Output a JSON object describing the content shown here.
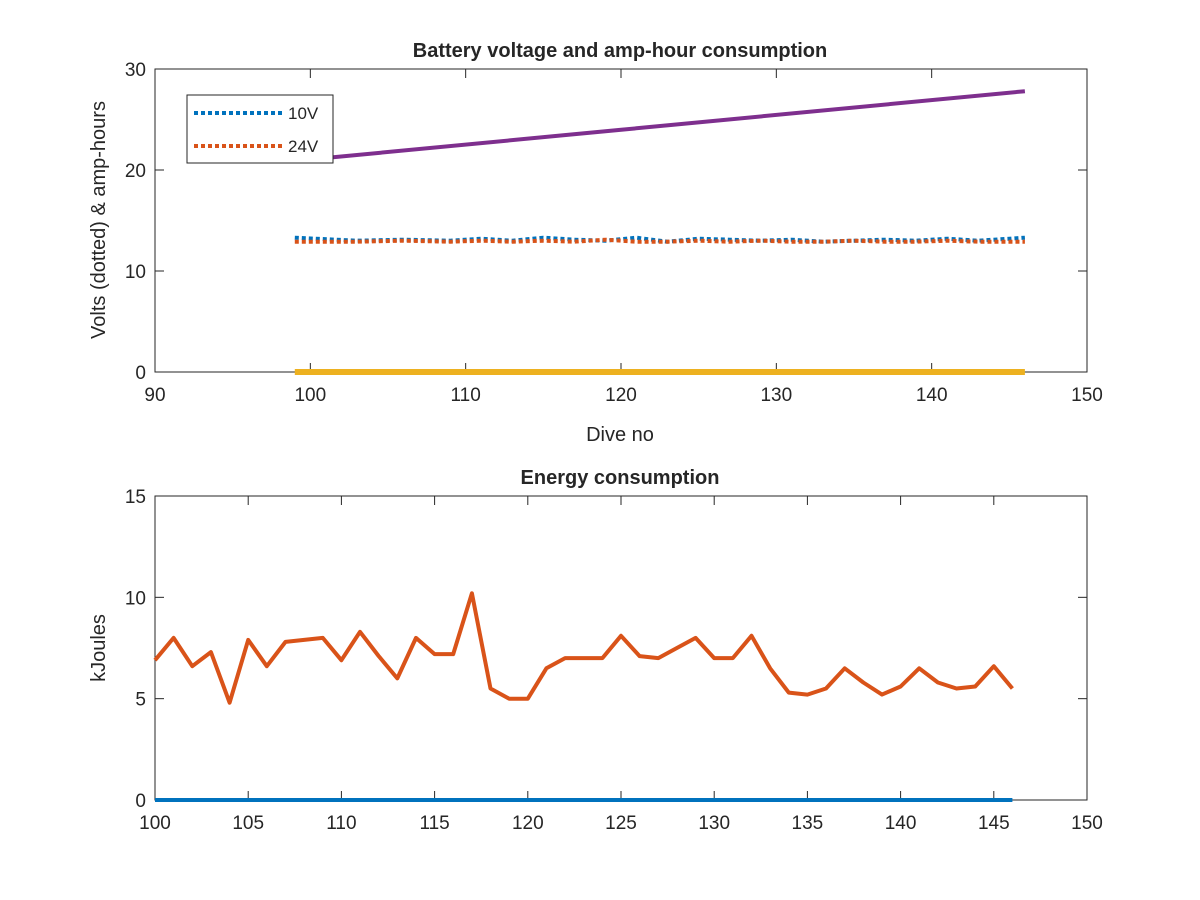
{
  "chart_data": [
    {
      "type": "line",
      "title": "Battery voltage and amp-hour consumption",
      "xlabel": "Dive no",
      "ylabel": "Volts (dotted) & amp-hours",
      "xlim": [
        90,
        150
      ],
      "ylim": [
        0,
        30
      ],
      "xticks": [
        90,
        100,
        110,
        120,
        130,
        140,
        150
      ],
      "yticks": [
        0,
        10,
        20,
        30
      ],
      "grid": false,
      "legend_location": "top-left",
      "series": [
        {
          "name": "10V",
          "style": "dotted",
          "color": "#0072BD",
          "x": [
            99,
            103,
            106,
            109,
            111,
            113,
            115,
            117,
            119,
            121,
            123,
            125,
            127,
            129,
            131,
            133,
            135,
            137,
            139,
            141,
            143,
            146
          ],
          "y": [
            13.3,
            13.0,
            13.1,
            13.0,
            13.2,
            13.0,
            13.3,
            13.1,
            13.0,
            13.3,
            12.9,
            13.2,
            13.1,
            13.0,
            13.1,
            12.9,
            13.0,
            13.1,
            13.0,
            13.2,
            13.0,
            13.3
          ]
        },
        {
          "name": "24V",
          "style": "dotted",
          "color": "#D95319",
          "x": [
            99,
            103,
            106,
            109,
            111,
            113,
            115,
            117,
            119,
            121,
            123,
            125,
            127,
            129,
            131,
            133,
            135,
            137,
            139,
            141,
            143,
            146
          ],
          "y": [
            12.9,
            12.9,
            13.0,
            12.9,
            13.0,
            12.9,
            13.0,
            12.9,
            13.1,
            12.9,
            12.9,
            13.0,
            12.9,
            13.0,
            12.9,
            12.9,
            13.0,
            12.9,
            12.9,
            13.0,
            12.9,
            12.9
          ]
        },
        {
          "style": "solid",
          "color": "#7E2F8E",
          "x": [
            99,
            146
          ],
          "y": [
            20.9,
            27.8
          ]
        },
        {
          "style": "solid",
          "color": "#EDB120",
          "x": [
            99,
            146
          ],
          "y": [
            0,
            0
          ]
        }
      ]
    },
    {
      "type": "line",
      "title": "Energy consumption",
      "xlabel": "",
      "ylabel": "kJoules",
      "xlim": [
        100,
        150
      ],
      "ylim": [
        0,
        15
      ],
      "xticks": [
        100,
        105,
        110,
        115,
        120,
        125,
        130,
        135,
        140,
        145,
        150
      ],
      "yticks": [
        0,
        5,
        10,
        15
      ],
      "grid": false,
      "series": [
        {
          "style": "solid",
          "color": "#D95319",
          "x": [
            100,
            101,
            102,
            103,
            104,
            105,
            106,
            107,
            108,
            109,
            110,
            111,
            112,
            113,
            114,
            115,
            116,
            117,
            118,
            119,
            120,
            121,
            122,
            123,
            124,
            125,
            126,
            127,
            128,
            129,
            130,
            131,
            132,
            133,
            134,
            135,
            136,
            137,
            138,
            139,
            140,
            141,
            142,
            143,
            144,
            145,
            146
          ],
          "y": [
            6.9,
            8.0,
            6.6,
            7.3,
            4.8,
            7.9,
            6.6,
            7.8,
            7.9,
            8.0,
            6.9,
            8.3,
            7.1,
            6.0,
            8.0,
            7.2,
            7.2,
            10.2,
            5.5,
            5.0,
            5.0,
            6.5,
            7.0,
            7.0,
            7.0,
            8.1,
            7.1,
            7.0,
            7.5,
            8.0,
            7.0,
            7.0,
            8.1,
            6.5,
            5.3,
            5.2,
            5.5,
            6.5,
            5.8,
            5.2,
            5.6,
            6.5,
            5.8,
            5.5,
            5.6,
            6.6,
            5.5
          ]
        },
        {
          "style": "solid",
          "color": "#0072BD",
          "x": [
            100,
            146
          ],
          "y": [
            0,
            0
          ]
        }
      ]
    }
  ]
}
